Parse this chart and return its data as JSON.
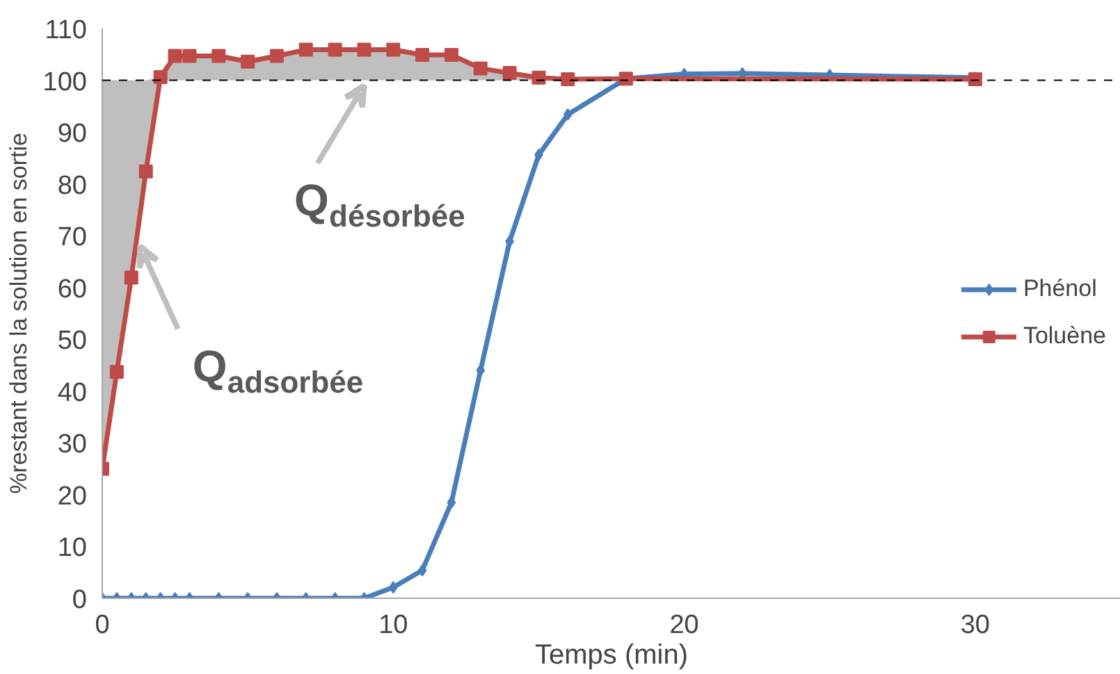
{
  "chart_data": {
    "type": "line",
    "xlabel": "Temps (min)",
    "ylabel": "%restant dans la solution en sortie",
    "xlim": [
      0,
      35
    ],
    "xticks": [
      0,
      10,
      20,
      30
    ],
    "ylim": [
      0,
      110
    ],
    "yticks": [
      0,
      10,
      20,
      30,
      40,
      50,
      60,
      70,
      80,
      90,
      100,
      110
    ],
    "grid": false,
    "legend": "right",
    "line_style": "solid",
    "series": [
      {
        "name": "Phénol",
        "color": "#4a7ebb",
        "marker": "diamond",
        "x": [
          0,
          0.5,
          1,
          1.5,
          2,
          2.5,
          3,
          4,
          5,
          6,
          7,
          8,
          9,
          10,
          11,
          12,
          13,
          14,
          15,
          16,
          18,
          20,
          22,
          25,
          30
        ],
        "values": [
          0,
          0,
          0,
          0,
          0,
          0,
          0,
          0,
          0,
          0,
          0,
          0,
          0,
          2.1,
          5.4,
          18.5,
          44,
          68.9,
          85.6,
          93.4,
          100.3,
          101.2,
          101.3,
          101,
          100.5
        ]
      },
      {
        "name": "Toluène",
        "color": "#be4b48",
        "marker": "square",
        "x": [
          0,
          0.5,
          1,
          1.5,
          2,
          2.5,
          3,
          4,
          5,
          6,
          7,
          8,
          9,
          10,
          11,
          12,
          13,
          14,
          15,
          16,
          18,
          30
        ],
        "values": [
          25,
          43.7,
          61.9,
          82.4,
          100.6,
          104.7,
          104.7,
          104.7,
          103.6,
          104.7,
          105.9,
          105.9,
          105.9,
          105.9,
          104.9,
          104.9,
          102.3,
          101.4,
          100.5,
          100.2,
          100.3,
          100.2
        ],
        "lower": [
          25,
          43.7,
          61.9,
          82.4,
          100,
          100,
          100,
          100,
          100,
          100,
          100,
          100,
          100,
          100,
          100,
          100,
          100,
          100,
          100,
          100,
          100,
          100
        ],
        "upper": [
          100,
          100,
          100,
          100,
          100.6,
          104.7,
          104.7,
          104.7,
          103.6,
          104.7,
          105.9,
          105.9,
          105.9,
          105.9,
          104.9,
          104.9,
          102.3,
          101.4,
          100.5,
          100.2,
          100.3,
          100.2
        ]
      }
    ],
    "ref_lines": [
      {
        "axis": "y",
        "value": 100,
        "label": null,
        "color": "#000000",
        "line_style": "dashed"
      }
    ],
    "annotations": [
      {
        "text": "Q$_{désorbée}$",
        "x": 9,
        "y": 99
      },
      {
        "text": "Q$_{adsorbée}$",
        "x": 1.3,
        "y": 68
      }
    ]
  }
}
